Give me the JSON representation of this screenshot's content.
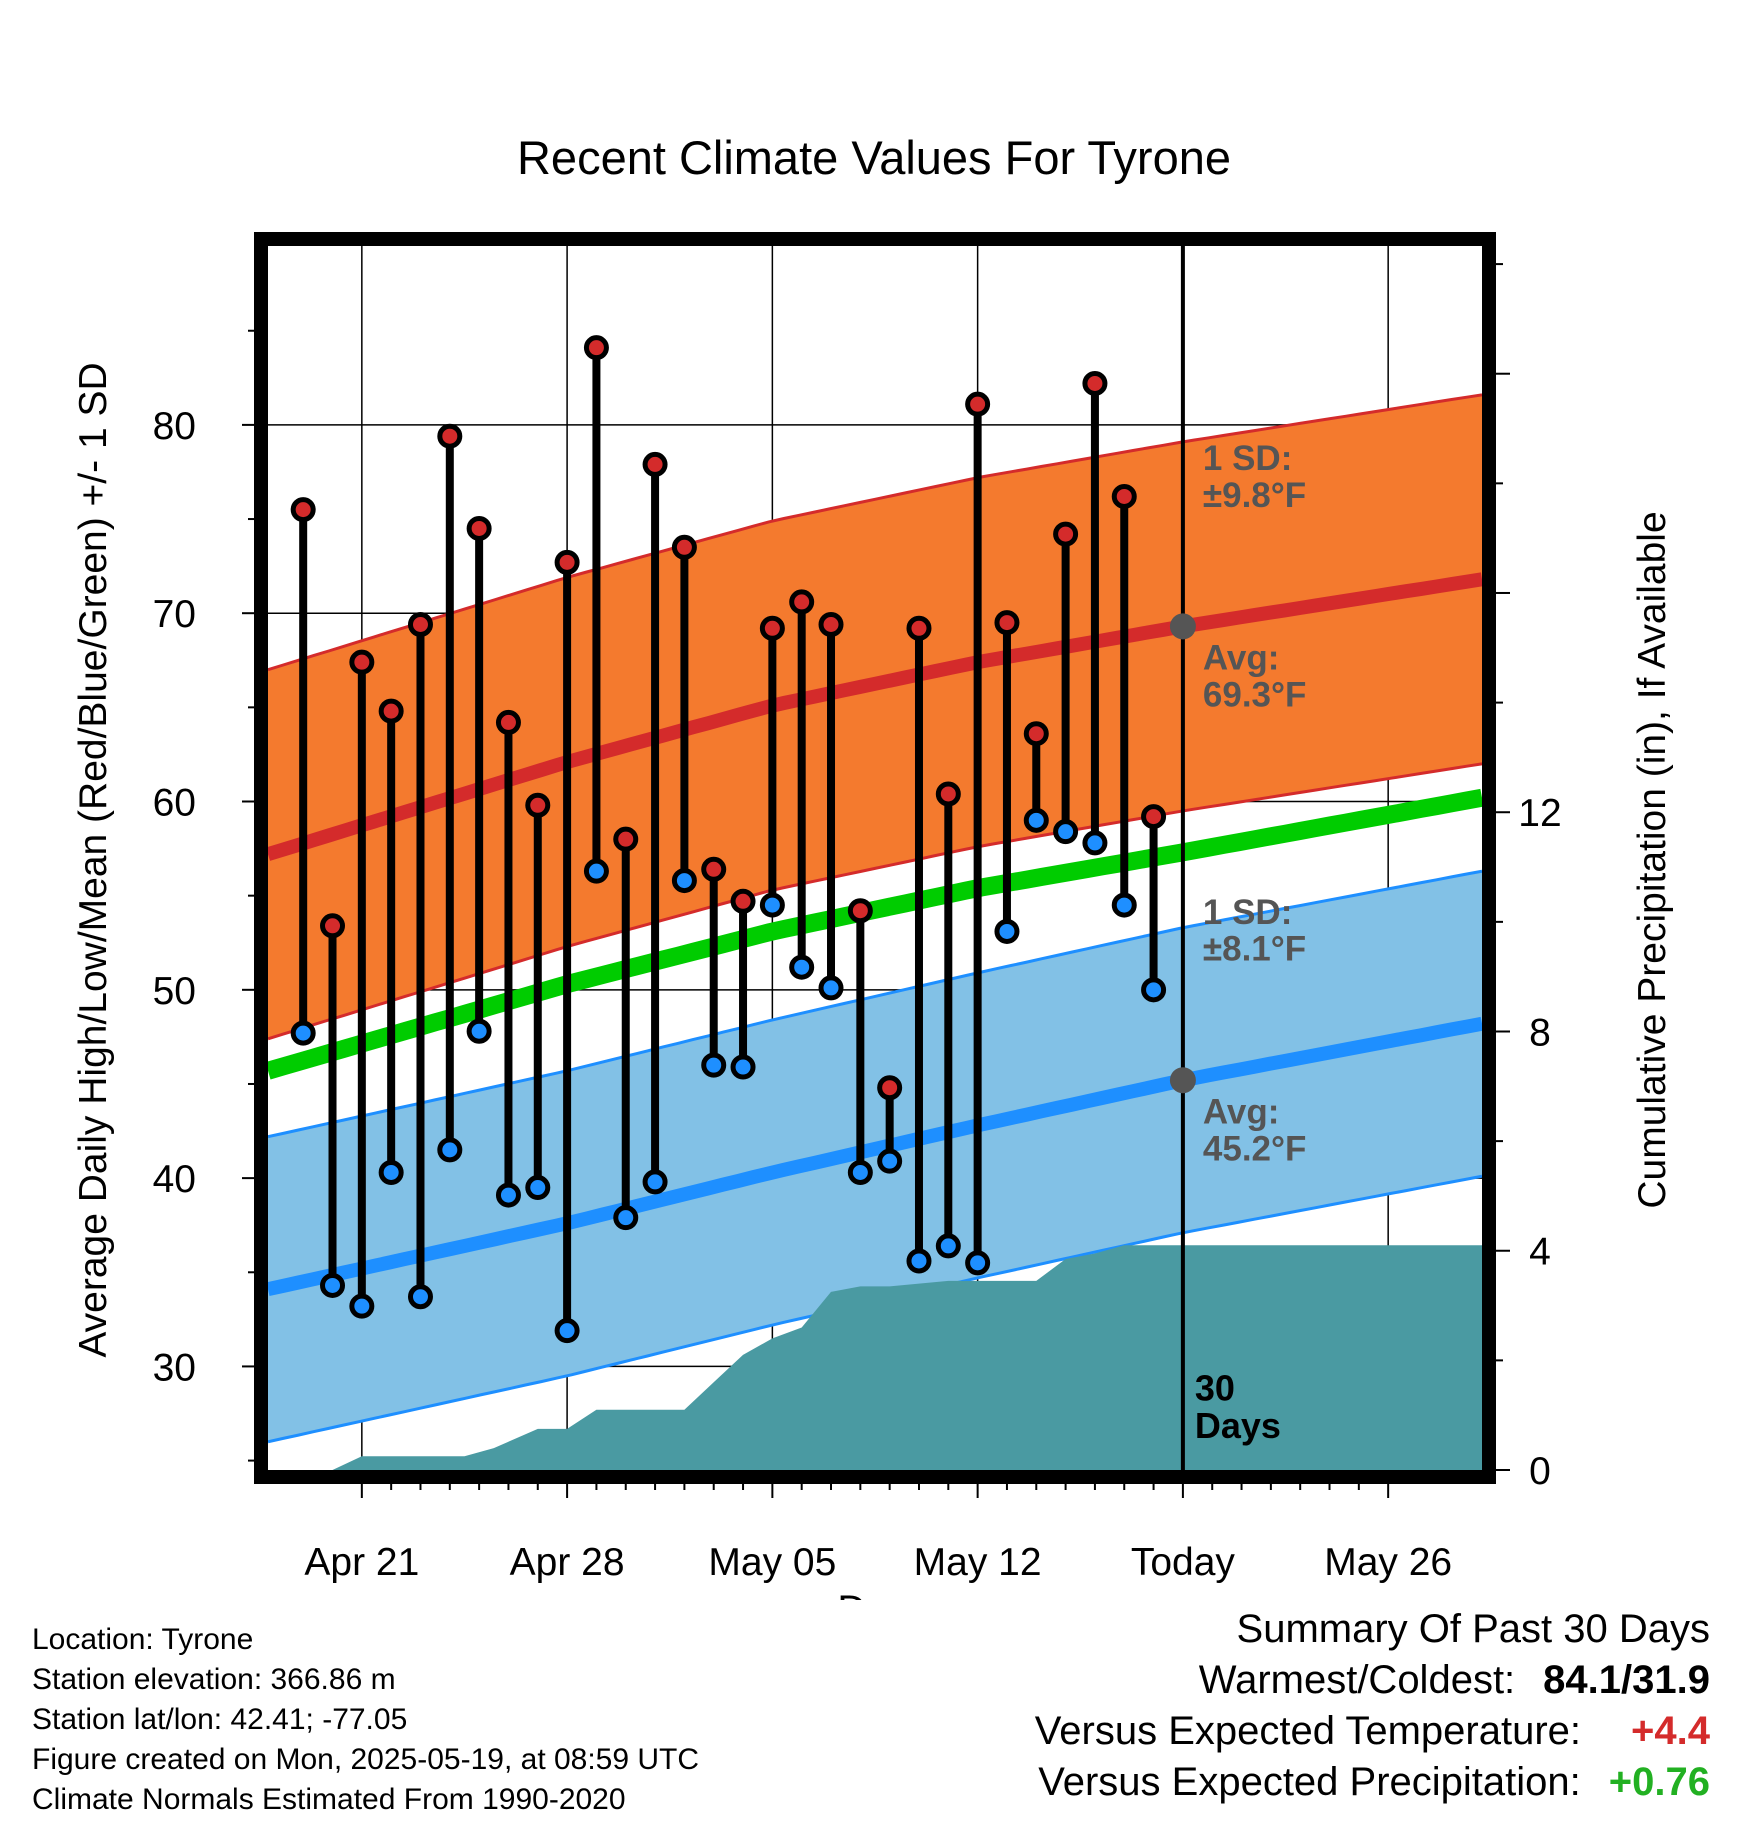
{
  "chart_data": {
    "type": "line",
    "title": "Recent Climate Values For Tyrone",
    "xlabel": "Day",
    "ylabel": "Average Daily High/Low/Mean (Red/Blue/Green) +/- 1 SD",
    "y2label": "Cumulative Precipitation (in), If Available",
    "ylim": [
      24.5,
      89.5
    ],
    "y2lim": [
      0,
      22.33
    ],
    "x_range_days": [
      -31.2,
      10.2
    ],
    "x_tick_days": [
      -28,
      -21,
      -14,
      -7,
      0,
      7
    ],
    "x_tick_labels": [
      "Apr 21",
      "Apr 28",
      "May 05",
      "May 12",
      "Today",
      "May 26"
    ],
    "y_ticks": [
      30,
      40,
      50,
      60,
      70,
      80
    ],
    "y2_ticks": [
      0,
      4,
      8,
      12
    ],
    "grid": true,
    "today_label": "30\nDays",
    "daily_high": [
      75.5,
      53.4,
      67.4,
      64.8,
      69.4,
      79.4,
      74.5,
      64.2,
      59.8,
      72.7,
      84.1,
      58.0,
      77.9,
      73.5,
      56.4,
      54.7,
      69.2,
      70.6,
      69.4,
      54.2,
      44.8,
      69.2,
      60.4,
      81.1,
      69.5,
      63.6,
      74.2,
      82.2,
      76.2,
      59.2
    ],
    "daily_low": [
      47.7,
      34.3,
      33.2,
      40.3,
      33.7,
      41.5,
      47.8,
      39.1,
      39.5,
      31.9,
      56.3,
      37.9,
      39.8,
      55.8,
      46.0,
      45.9,
      54.5,
      51.2,
      50.1,
      40.3,
      40.9,
      35.6,
      36.4,
      35.5,
      53.1,
      59.0,
      58.4,
      57.8,
      54.5,
      50.0
    ],
    "normal_high": {
      "x_days": [
        -31.2,
        -21,
        -14,
        -7,
        0,
        10.2
      ],
      "avg": [
        57.2,
        62.1,
        65.1,
        67.4,
        69.3,
        71.8
      ],
      "sd": 9.8,
      "label_sd": "1 SD:\n±9.8°F",
      "label_avg": "Avg:\n69.3°F"
    },
    "normal_low": {
      "x_days": [
        -31.2,
        -21,
        -14,
        -7,
        0,
        10.2
      ],
      "avg": [
        34.1,
        37.6,
        40.3,
        42.8,
        45.2,
        48.2
      ],
      "sd": 8.1,
      "label_sd": "1 SD:\n±8.1°F",
      "label_avg": "Avg:\n45.2°F"
    },
    "normal_mean": {
      "x_days": [
        -31.2,
        -21,
        -14,
        -7,
        0,
        10.2
      ],
      "values": [
        45.7,
        50.3,
        53.1,
        55.4,
        57.3,
        60.2
      ]
    },
    "precip_cumulative": {
      "x_days": [
        -31.2,
        -29,
        -28,
        -24.5,
        -23.5,
        -22,
        -21,
        -20,
        -19,
        -17,
        -16,
        -15,
        -14,
        -13,
        -12,
        -11,
        -10,
        -8,
        -7,
        -6,
        -5,
        -4,
        -3,
        -2,
        -1,
        0,
        10.2
      ],
      "values": [
        0,
        0,
        0.25,
        0.25,
        0.4,
        0.75,
        0.75,
        1.1,
        1.1,
        1.1,
        1.6,
        2.1,
        2.4,
        2.6,
        3.25,
        3.35,
        3.35,
        3.45,
        3.45,
        3.45,
        3.45,
        3.85,
        3.95,
        4.1,
        4.1,
        4.1,
        4.1
      ]
    },
    "colors": {
      "high_band": "#f47a2e",
      "high_line": "#d42b2b",
      "low_band": "#82c1e6",
      "low_line": "#1e8fff",
      "mean_line": "#00cc00",
      "precip": "#4a9aa2",
      "high_dot": "#d42b2b",
      "low_dot": "#1e8fff",
      "label_text": "#555555"
    }
  },
  "info": {
    "location": "Location: Tyrone",
    "elevation": "Station elevation: 366.86 m",
    "latlon": "Station lat/lon: 42.41; -77.05",
    "created": "Figure created on Mon, 2025-05-19, at 08:59 UTC",
    "normals": "Climate Normals Estimated From 1990-2020"
  },
  "summary": {
    "heading": "Summary Of Past 30 Days",
    "warmest_label": "Warmest/Coldest:",
    "warmest_value": "84.1/31.9",
    "temp_label": "Versus Expected Temperature:",
    "temp_value": "+4.4",
    "temp_color": "#d42b2b",
    "precip_label": "Versus Expected Precipitation:",
    "precip_value": "+0.76",
    "precip_color": "#22b022"
  }
}
